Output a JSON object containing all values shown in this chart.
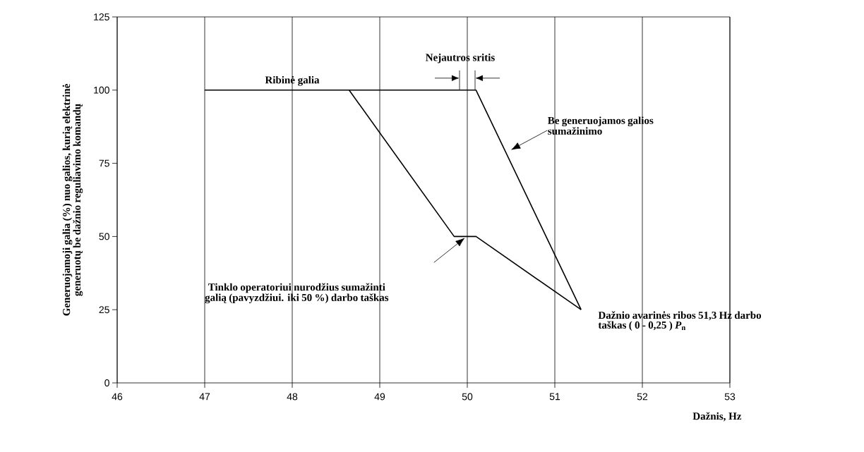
{
  "chart_data": {
    "type": "line",
    "xlabel": "Dažnis, Hz",
    "ylabel": "Generuojamoji galia (%) nuo galios, kurią elektrinė generuotų be dažnio reguliavimo komandų",
    "xlim": [
      46,
      53
    ],
    "ylim": [
      0,
      125
    ],
    "xticks": [
      46,
      47,
      48,
      49,
      50,
      51,
      52,
      53
    ],
    "yticks": [
      0,
      25,
      50,
      75,
      100,
      125
    ],
    "grid": "x",
    "line_style": "solid",
    "series": [
      {
        "color": "#000000",
        "x": [
          47,
          50.1,
          51.3
        ],
        "values": [
          100,
          100,
          25
        ]
      },
      {
        "color": "#000000",
        "x": [
          48.65,
          49.85,
          50.1,
          51.3
        ],
        "values": [
          100,
          50,
          50,
          25
        ]
      }
    ],
    "annotations": [
      {
        "text": "Ribinė galia",
        "x": 48,
        "y": 100
      },
      {
        "text": "Nejautros sritis",
        "x": 50,
        "y": 100
      },
      "Be generuojamos galios sumažinimo",
      "Tinklo operatoriui nurodžius sumažinti galią (pavyzdžiui. iki 50 %) darbo taškas",
      {
        "text": "Dažnio avarinės ribos 51,3 Hz darbo taškas ( 0 - 0,25 ) *P*$_{n}$",
        "x": 51.3,
        "y": 25
      }
    ]
  }
}
